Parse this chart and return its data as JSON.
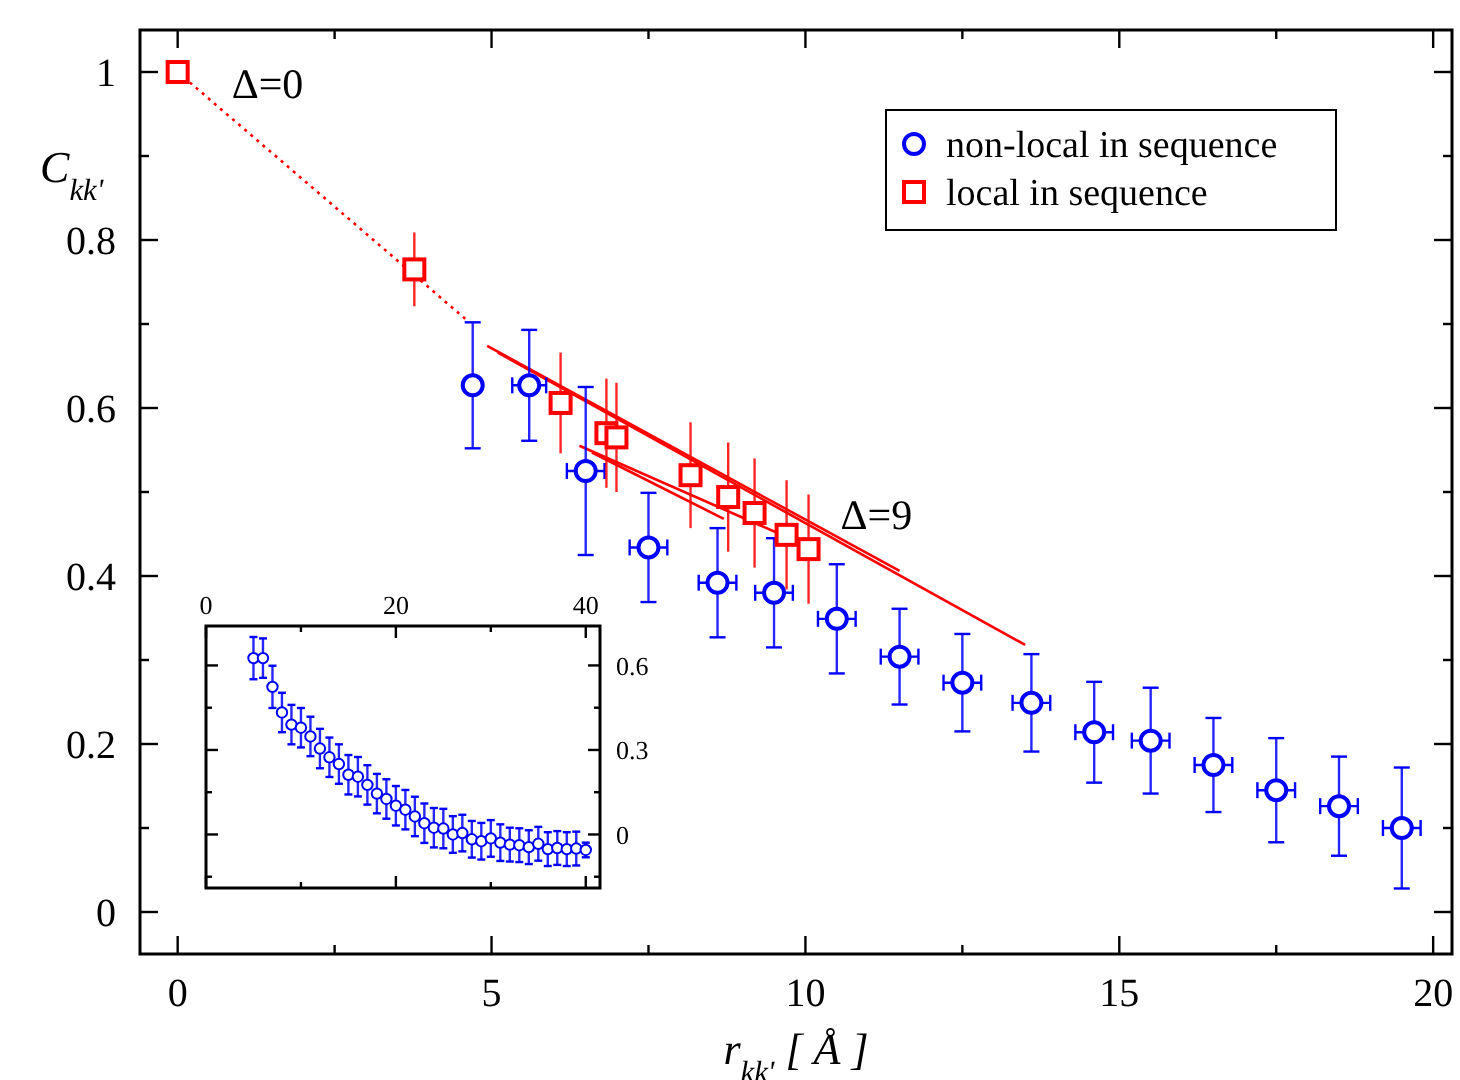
{
  "chart_data": [
    {
      "type": "scatter",
      "xlabel": "r$_{kk'}$  [ Å ]",
      "ylabel": "C$_{kk'}$",
      "xlim": [
        -0.6,
        20.3
      ],
      "ylim": [
        -0.05,
        1.05
      ],
      "xticks": [
        0,
        {
          "value": 2.5,
          "label": null
        },
        5,
        {
          "value": 7.5,
          "label": null
        },
        10,
        {
          "value": 12.5,
          "label": null
        },
        15,
        {
          "value": 17.5,
          "label": null
        },
        20
      ],
      "yticks": [
        0,
        {
          "value": 0.1,
          "label": null
        },
        0.2,
        {
          "value": 0.3,
          "label": null
        },
        0.4,
        {
          "value": 0.5,
          "label": null
        },
        0.6,
        {
          "value": 0.7,
          "label": null
        },
        0.8,
        {
          "value": 0.9,
          "label": null
        },
        1
      ],
      "grid": false,
      "legend": "top right",
      "annotations": [
        {
          "text": "Δ=0",
          "x": 0,
          "y": 1
        },
        {
          "text": "Δ=9",
          "x": 10.05,
          "y": 0.432
        }
      ],
      "series": [
        {
          "type": "line",
          "color": "#ff0000",
          "line_style": "dotted",
          "x": [
            0,
            4.6
          ],
          "values": [
            1.0,
            0.705
          ]
        },
        {
          "type": "line",
          "color": "#ff0000",
          "line_style": "solid",
          "x": [
            4.93,
            11.5
          ],
          "values": [
            0.674,
            0.406
          ]
        },
        {
          "type": "line",
          "color": "#ff0000",
          "line_style": "solid",
          "x": [
            5.1,
            13.5
          ],
          "values": [
            0.666,
            0.318
          ]
        },
        {
          "type": "line",
          "color": "#ff0000",
          "line_style": "solid",
          "x": [
            6.4,
            10.2
          ],
          "values": [
            0.555,
            0.43
          ]
        },
        {
          "type": "line",
          "color": "#ff0000",
          "line_style": "solid",
          "x": [
            6.6,
            8.7
          ],
          "values": [
            0.547,
            0.468
          ]
        },
        {
          "name": "non-local in sequence",
          "color": "#0000ff",
          "marker": "circle",
          "x": [
            4.7,
            5.6,
            6.5,
            7.5,
            8.6,
            9.5,
            10.5,
            11.5,
            12.5,
            13.6,
            14.6,
            15.5,
            16.5,
            17.5,
            18.5,
            19.5
          ],
          "values": [
            0.627,
            0.627,
            0.525,
            0.434,
            0.392,
            0.38,
            0.349,
            0.304,
            0.273,
            0.249,
            0.214,
            0.204,
            0.175,
            0.145,
            0.126,
            0.1
          ],
          "errors": [
            0.075,
            0.066,
            0.1,
            0.065,
            0.065,
            0.065,
            0.065,
            0.057,
            0.058,
            0.058,
            0.06,
            0.063,
            0.056,
            0.062,
            0.059,
            0.072
          ],
          "xerrors": [
            null,
            0.27,
            0.3,
            0.3,
            0.3,
            0.3,
            0.3,
            0.3,
            0.3,
            0.3,
            0.3,
            0.3,
            0.3,
            0.3,
            0.3,
            0.3
          ]
        },
        {
          "name": "local in sequence",
          "color": "#ff0000",
          "marker": "square",
          "x": [
            0,
            3.77,
            6.1,
            6.83,
            6.99,
            8.17,
            8.77,
            9.19,
            9.7,
            10.05
          ],
          "values": [
            1.0,
            0.765,
            0.606,
            0.57,
            0.565,
            0.52,
            0.494,
            0.475,
            0.449,
            0.432
          ],
          "errors": [
            null,
            0.044,
            0.06,
            0.065,
            0.065,
            0.063,
            0.065,
            0.065,
            0.065,
            0.065
          ]
        }
      ]
    },
    {
      "type": "scatter",
      "xlim": [
        0,
        41.5
      ],
      "ylim": [
        -0.19,
        0.74
      ],
      "xticks": [
        0,
        {
          "value": 10,
          "label": null
        },
        20,
        {
          "value": 30,
          "label": null
        },
        40
      ],
      "yticks": [
        {
          "value": -0.15,
          "label": null
        },
        0,
        {
          "value": 0.15,
          "label": null
        },
        0.3,
        {
          "value": 0.45,
          "label": null
        },
        0.6
      ],
      "grid": false,
      "series": [
        {
          "color": "#0000ff",
          "marker": "circle",
          "x": [
            5,
            6,
            7,
            8,
            9,
            10,
            11,
            12,
            13,
            14,
            15,
            16,
            17,
            18,
            19,
            20,
            21,
            22,
            23,
            24,
            25,
            26,
            27,
            28,
            29,
            30,
            31,
            32,
            33,
            34,
            35,
            36,
            37,
            38,
            39,
            40
          ],
          "values": [
            0.626,
            0.626,
            0.524,
            0.433,
            0.39,
            0.379,
            0.348,
            0.305,
            0.274,
            0.25,
            0.212,
            0.205,
            0.176,
            0.145,
            0.126,
            0.102,
            0.088,
            0.064,
            0.04,
            0.024,
            0.021,
            0,
            0.005,
            -0.017,
            -0.024,
            -0.014,
            -0.029,
            -0.036,
            -0.038,
            -0.045,
            -0.033,
            -0.052,
            -0.048,
            -0.052,
            -0.05,
            -0.055
          ],
          "errors": [
            0.075,
            0.07,
            0.075,
            0.07,
            0.07,
            0.07,
            0.07,
            0.07,
            0.07,
            0.07,
            0.07,
            0.07,
            0.07,
            0.07,
            0.07,
            0.07,
            0.07,
            0.07,
            0.07,
            0.07,
            0.07,
            0.065,
            0.065,
            0.065,
            0.065,
            0.065,
            0.065,
            0.06,
            0.06,
            0.06,
            0.06,
            0.06,
            0.06,
            0.06,
            0.06,
            0.026
          ]
        }
      ]
    }
  ]
}
